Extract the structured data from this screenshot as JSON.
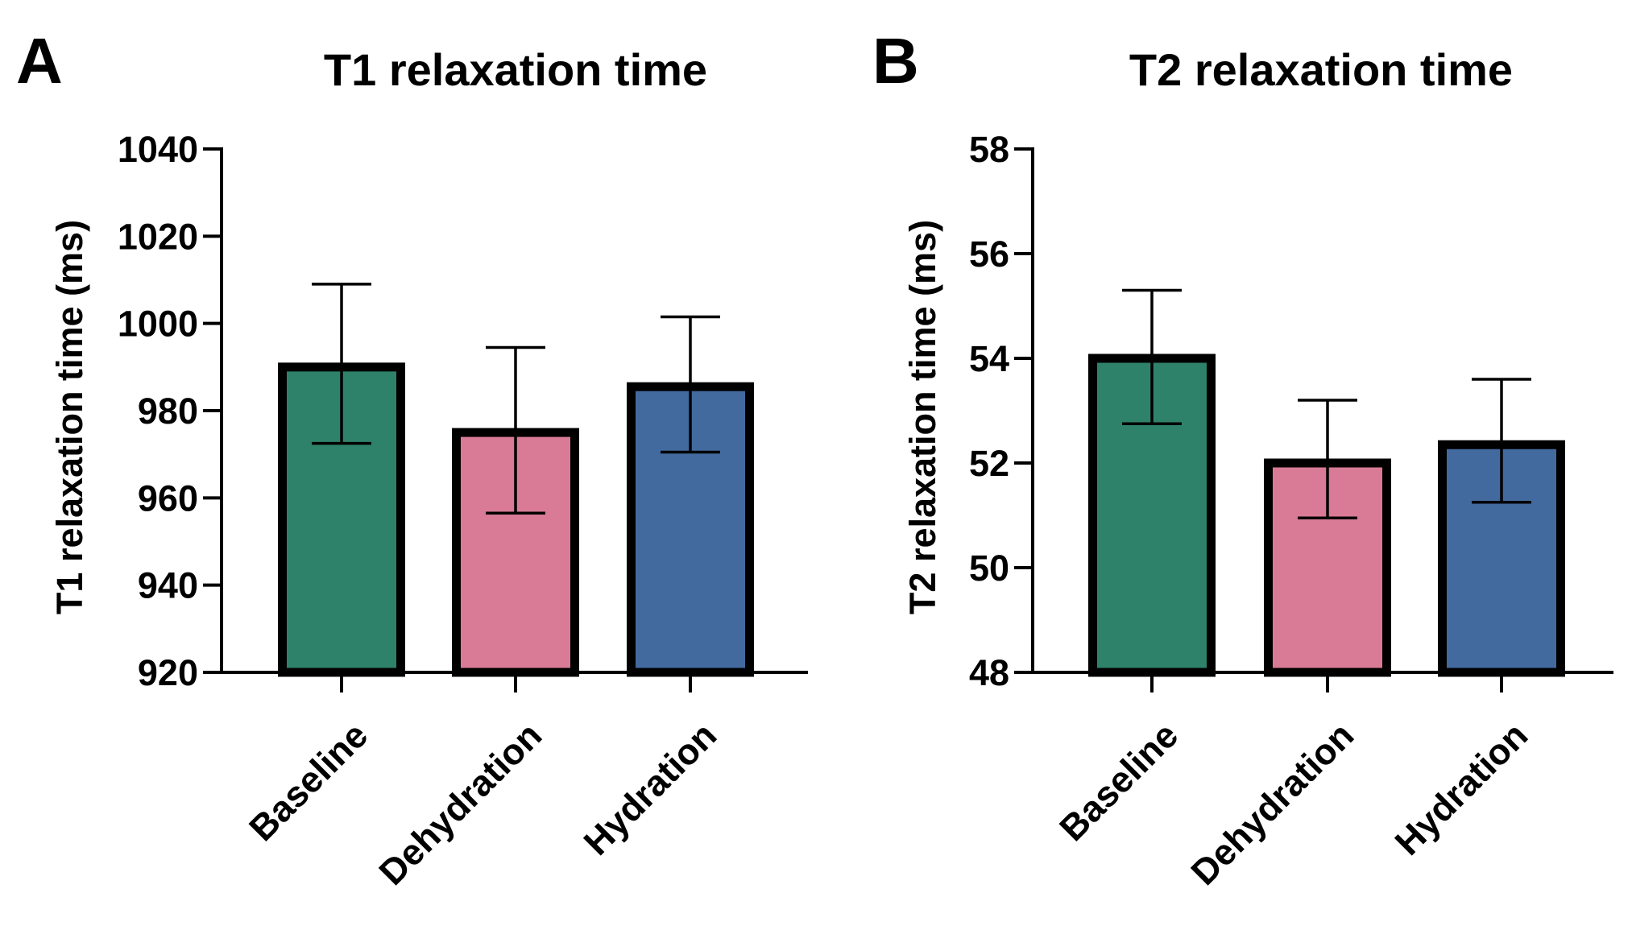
{
  "panel_letters": [
    "A",
    "B"
  ],
  "chart_data": [
    {
      "type": "bar",
      "panel": "A",
      "title": "T1 relaxation time",
      "xlabel": "",
      "ylabel": "T1 relaxation time (ms)",
      "ylim": [
        920,
        1040
      ],
      "yticks": [
        920,
        940,
        960,
        980,
        1000,
        1020,
        1040
      ],
      "grid": false,
      "categories": [
        "Baseline",
        "Dehydration",
        "Hydration"
      ],
      "values": [
        990,
        975,
        985.5
      ],
      "error_low": [
        972.5,
        956.5,
        970.5
      ],
      "error_high": [
        1009,
        994.5,
        1001.5
      ],
      "colors": [
        "#2f826a",
        "#d97b96",
        "#436a9f"
      ]
    },
    {
      "type": "bar",
      "panel": "B",
      "title": "T2 relaxation time",
      "xlabel": "",
      "ylabel": "T2 relaxation time (ms)",
      "ylim": [
        48,
        58
      ],
      "yticks": [
        48,
        50,
        52,
        54,
        56,
        58
      ],
      "grid": false,
      "categories": [
        "Baseline",
        "Dehydration",
        "Hydration"
      ],
      "values": [
        54.0,
        52.0,
        52.35
      ],
      "error_low": [
        52.75,
        50.95,
        51.25
      ],
      "error_high": [
        55.3,
        53.2,
        53.6
      ],
      "colors": [
        "#2f826a",
        "#d97b96",
        "#436a9f"
      ]
    }
  ]
}
